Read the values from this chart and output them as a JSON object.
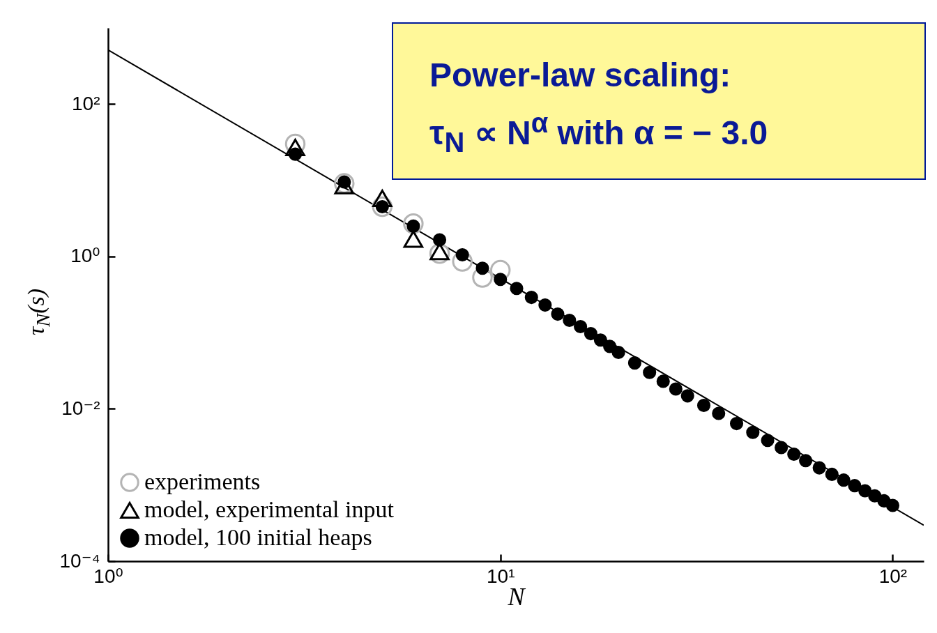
{
  "chart_data": {
    "type": "scatter",
    "xlabel": "N",
    "ylabel": "τ$_{N}$(s)",
    "log": "xy",
    "grid": false,
    "legend": "bottom left",
    "annotations": [
      "Power-law scaling:",
      "τ$_{N}$ ∝ N$^{α}$ with α = − 3.0"
    ],
    "xlim": [
      1,
      120
    ],
    "xticks": [
      {
        "value": 1,
        "label": "10⁰"
      },
      {
        "value": 10,
        "label": "10¹"
      },
      {
        "value": 100,
        "label": "10²"
      }
    ],
    "ylim": [
      0.0001,
      1000
    ],
    "yticks": [
      {
        "value": 0.0001,
        "label": "10⁻⁴"
      },
      {
        "value": 0.01,
        "label": "10⁻²"
      },
      {
        "value": 1,
        "label": "10⁰"
      },
      {
        "value": 100,
        "label": "10²"
      }
    ],
    "series": [
      {
        "type": "line",
        "color": "#000000",
        "x": [
          1,
          120
        ],
        "values": [
          513,
          0.000297
        ]
      },
      {
        "name": "experiments",
        "color": "#b4b4b4",
        "marker": "circle",
        "x": [
          3,
          4,
          5,
          6,
          7,
          8,
          9,
          10
        ],
        "values": [
          30,
          9.1,
          4.5,
          2.7,
          1.09,
          0.86,
          0.53,
          0.66
        ]
      },
      {
        "name": "model, experimental input",
        "color": "#000000",
        "marker": "triangle",
        "x": [
          3,
          4,
          5,
          6,
          7
        ],
        "values": [
          27,
          8.5,
          5.8,
          1.69,
          1.16
        ]
      },
      {
        "name": "model, 100 initial heaps",
        "color": "#000000",
        "x": [
          3,
          4,
          5,
          6,
          7,
          8,
          9,
          10,
          11,
          12,
          13,
          14,
          15,
          16,
          17,
          18,
          19,
          20,
          22,
          24,
          26,
          28,
          30,
          33,
          36,
          40,
          44,
          48,
          52,
          56,
          60,
          65,
          70,
          75,
          80,
          85,
          90,
          95,
          100
        ],
        "values": [
          22,
          9.5,
          4.5,
          2.5,
          1.65,
          1.05,
          0.7,
          0.5,
          0.38,
          0.29,
          0.23,
          0.175,
          0.145,
          0.12,
          0.097,
          0.08,
          0.066,
          0.055,
          0.04,
          0.03,
          0.023,
          0.0182,
          0.0148,
          0.0111,
          0.0087,
          0.0064,
          0.0049,
          0.00385,
          0.0031,
          0.00254,
          0.00209,
          0.00168,
          0.00138,
          0.00116,
          0.00098,
          0.00084,
          0.00072,
          0.00062,
          0.00054
        ]
      }
    ]
  }
}
